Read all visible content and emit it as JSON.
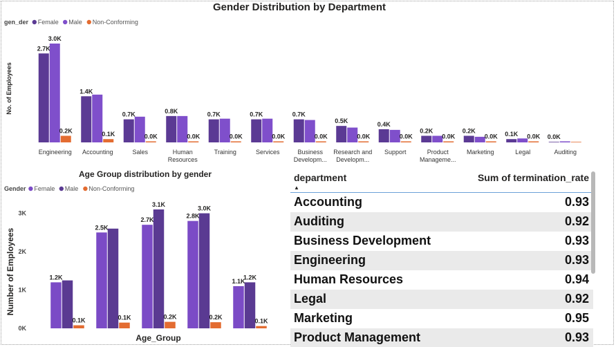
{
  "chart_data": [
    {
      "type": "bar",
      "title": "Gender Distribution by Department",
      "legend_title": "gen_der",
      "legend_position": "top-left",
      "ylabel": "No. of Employees",
      "xlabel": "",
      "grid": false,
      "categories": [
        "Engineering",
        "Accounting",
        "Sales",
        "Human Resources",
        "Training",
        "Services",
        "Business Developm...",
        "Research and Developm...",
        "Support",
        "Product Manageme...",
        "Marketing",
        "Legal",
        "Auditing"
      ],
      "series": [
        {
          "name": "Female",
          "color": "#5b3a94",
          "values": [
            2.7,
            1.4,
            0.7,
            0.8,
            0.7,
            0.7,
            0.7,
            0.5,
            0.4,
            0.2,
            0.2,
            0.1,
            0.0
          ],
          "labels": [
            "2.7K",
            "1.4K",
            "0.7K",
            "0.8K",
            "0.7K",
            "0.7K",
            "0.7K",
            "0.5K",
            "0.4K",
            "0.2K",
            "0.2K",
            "0.1K",
            "0.0K"
          ]
        },
        {
          "name": "Male",
          "color": "#7f4fcb",
          "values": [
            3.0,
            1.45,
            0.78,
            0.8,
            0.72,
            0.72,
            0.68,
            0.45,
            0.38,
            0.2,
            0.17,
            0.12,
            0.02
          ],
          "labels": [
            "3.0K",
            "",
            "",
            "",
            "",
            "",
            "",
            "",
            "",
            "",
            "",
            "",
            ""
          ]
        },
        {
          "name": "Non-Conforming",
          "color": "#e36c31",
          "values": [
            0.2,
            0.1,
            0.03,
            0.03,
            0.03,
            0.03,
            0.03,
            0.02,
            0.02,
            0.01,
            0.01,
            0.01,
            0.0
          ],
          "labels": [
            "0.2K",
            "0.1K",
            "0.0K",
            "0.0K",
            "0.0K",
            "0.0K",
            "0.0K",
            "0.0K",
            "0.0K",
            "0.0K",
            "0.0K",
            "0.0K",
            ""
          ]
        }
      ],
      "ylim": [
        0,
        3.0
      ]
    },
    {
      "type": "bar",
      "title": "Age Group distribution by gender",
      "legend_title": "Gender",
      "legend_position": "top-left",
      "ylabel": "Number of Employees",
      "xlabel": "Age_Group",
      "grid": false,
      "categories": [
        "",
        "",
        "",
        "",
        ""
      ],
      "yticks": [
        0,
        1,
        2,
        3
      ],
      "ytick_labels": [
        "0K",
        "1K",
        "2K",
        "3K"
      ],
      "ylim": [
        0,
        3.1
      ],
      "series": [
        {
          "name": "Female",
          "color": "#7b4bc6",
          "values": [
            1.2,
            2.5,
            2.7,
            2.8,
            1.1
          ],
          "labels": [
            "1.2K",
            "2.5K",
            "2.7K",
            "2.8K",
            "1.1K"
          ]
        },
        {
          "name": "Male",
          "color": "#5a3a92",
          "values": [
            1.25,
            2.6,
            3.1,
            3.0,
            1.2
          ],
          "labels": [
            "",
            "",
            "3.1K",
            "3.0K",
            "1.2K"
          ]
        },
        {
          "name": "Non-Conforming",
          "color": "#e36c31",
          "values": [
            0.08,
            0.15,
            0.17,
            0.16,
            0.06
          ],
          "labels": [
            "0.1K",
            "0.1K",
            "0.2K",
            "0.2K",
            "0.1K"
          ]
        }
      ]
    }
  ],
  "table": {
    "columns": [
      "department",
      "Sum of termination_rate"
    ],
    "rows": [
      [
        "Accounting",
        "0.93"
      ],
      [
        "Auditing",
        "0.92"
      ],
      [
        "Business Development",
        "0.93"
      ],
      [
        "Engineering",
        "0.93"
      ],
      [
        "Human Resources",
        "0.94"
      ],
      [
        "Legal",
        "0.92"
      ],
      [
        "Marketing",
        "0.95"
      ],
      [
        "Product Management",
        "0.93"
      ]
    ]
  }
}
